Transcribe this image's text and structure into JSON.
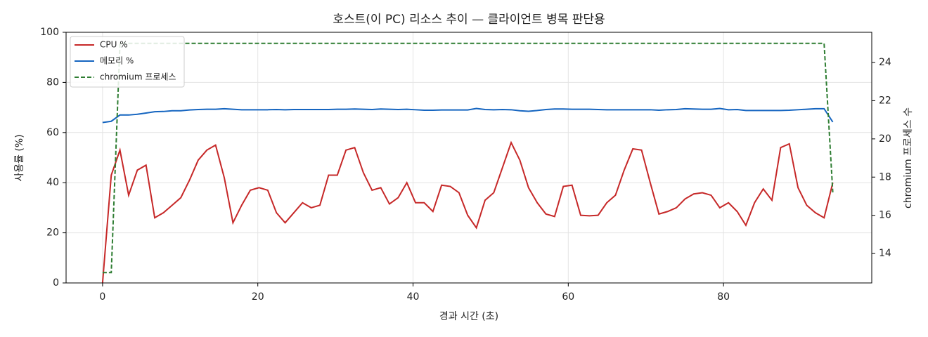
{
  "chart_data": {
    "type": "line",
    "title": "호스트(이 PC) 리소스 추이 — 클라이언트 병목 판단용",
    "x_label": "경과 시간 (초)",
    "y_label": "사용률 (%)",
    "y2_label": "chromium 프로세스 수",
    "x": [
      0,
      1.12,
      2.24,
      3.36,
      4.48,
      5.6,
      6.72,
      7.84,
      8.96,
      10.08,
      11.2,
      12.32,
      13.44,
      14.56,
      15.68,
      16.8,
      17.92,
      19.04,
      20.16,
      21.28,
      22.4,
      23.52,
      24.64,
      25.76,
      26.88,
      28,
      29.12,
      30.24,
      31.36,
      32.48,
      33.6,
      34.72,
      35.84,
      36.96,
      38.08,
      39.2,
      40.32,
      41.44,
      42.56,
      43.68,
      44.8,
      45.92,
      47.04,
      48.16,
      49.28,
      50.4,
      51.52,
      52.64,
      53.76,
      54.88,
      56,
      57.12,
      58.24,
      59.36,
      60.48,
      61.6,
      62.72,
      63.84,
      64.96,
      66.08,
      67.2,
      68.32,
      69.44,
      70.56,
      71.68,
      72.8,
      73.92,
      75.04,
      76.16,
      77.28,
      78.4,
      79.52,
      80.64,
      81.76,
      82.88,
      84,
      85.12,
      86.24,
      87.36,
      88.48,
      89.6,
      90.72,
      91.84,
      92.96,
      94.08
    ],
    "series": [
      {
        "name": "CPU %",
        "color": "#c62828",
        "style": "solid",
        "values": [
          0,
          43,
          53,
          35,
          45,
          47,
          26,
          28,
          31,
          34,
          41,
          49,
          53,
          55,
          42,
          24,
          31,
          37,
          38,
          37,
          28,
          24,
          28,
          32,
          30,
          31,
          43,
          43,
          53,
          54,
          44,
          37,
          38,
          31.5,
          34,
          40,
          32,
          32,
          28.5,
          39,
          38.5,
          36,
          27,
          22,
          33,
          36,
          46,
          56,
          49,
          38,
          32,
          27.5,
          26.5,
          38.5,
          39,
          27,
          26.8,
          27,
          32,
          35,
          45,
          53.5,
          53,
          40,
          27.5,
          28.5,
          30,
          33.5,
          35.5,
          36,
          35,
          30,
          32,
          28.5,
          23,
          32,
          37.5,
          33,
          54,
          55.5,
          38,
          31,
          28,
          26,
          40
        ]
      },
      {
        "name": "메모리 %",
        "color": "#1565c0",
        "style": "solid",
        "values": [
          64,
          64.5,
          67,
          67,
          67.3,
          67.8,
          68.3,
          68.4,
          68.7,
          68.7,
          69,
          69.2,
          69.3,
          69.3,
          69.5,
          69.3,
          69.1,
          69.1,
          69.1,
          69.1,
          69.2,
          69.1,
          69.2,
          69.2,
          69.2,
          69.2,
          69.2,
          69.3,
          69.3,
          69.4,
          69.3,
          69.2,
          69.4,
          69.3,
          69.2,
          69.3,
          69.1,
          68.9,
          68.9,
          69,
          69,
          69,
          69,
          69.6,
          69.2,
          69.1,
          69.2,
          69.1,
          68.7,
          68.5,
          68.8,
          69.2,
          69.4,
          69.4,
          69.3,
          69.3,
          69.3,
          69.2,
          69.1,
          69.1,
          69.1,
          69.1,
          69.1,
          69.1,
          68.9,
          69.1,
          69.2,
          69.5,
          69.4,
          69.3,
          69.3,
          69.6,
          69.1,
          69.2,
          68.8,
          68.8,
          68.8,
          68.8,
          68.8,
          68.9,
          69.1,
          69.3,
          69.5,
          69.5,
          64.2
        ]
      },
      {
        "name": "chromium 프로세스",
        "color": "#2e7d32",
        "style": "dashed",
        "axis": "y2",
        "values": [
          13,
          13,
          25,
          25,
          25,
          25,
          25,
          25,
          25,
          25,
          25,
          25,
          25,
          25,
          25,
          25,
          25,
          25,
          25,
          25,
          25,
          25,
          25,
          25,
          25,
          25,
          25,
          25,
          25,
          25,
          25,
          25,
          25,
          25,
          25,
          25,
          25,
          25,
          25,
          25,
          25,
          25,
          25,
          25,
          25,
          25,
          25,
          25,
          25,
          25,
          25,
          25,
          25,
          25,
          25,
          25,
          25,
          25,
          25,
          25,
          25,
          25,
          25,
          25,
          25,
          25,
          25,
          25,
          25,
          25,
          25,
          25,
          25,
          25,
          25,
          25,
          25,
          25,
          25,
          25,
          25,
          25,
          25,
          25,
          17.2
        ]
      }
    ],
    "xlim": [
      -4.7,
      99.1
    ],
    "xticks": [
      0,
      20,
      40,
      60,
      80
    ],
    "ylim": [
      0,
      100
    ],
    "yticks": [
      0,
      20,
      40,
      60,
      80,
      100
    ],
    "y2lim": [
      12.46,
      25.58
    ],
    "y2ticks": [
      14,
      16,
      18,
      20,
      22,
      24
    ],
    "grid": true,
    "legend": "upper-left"
  }
}
